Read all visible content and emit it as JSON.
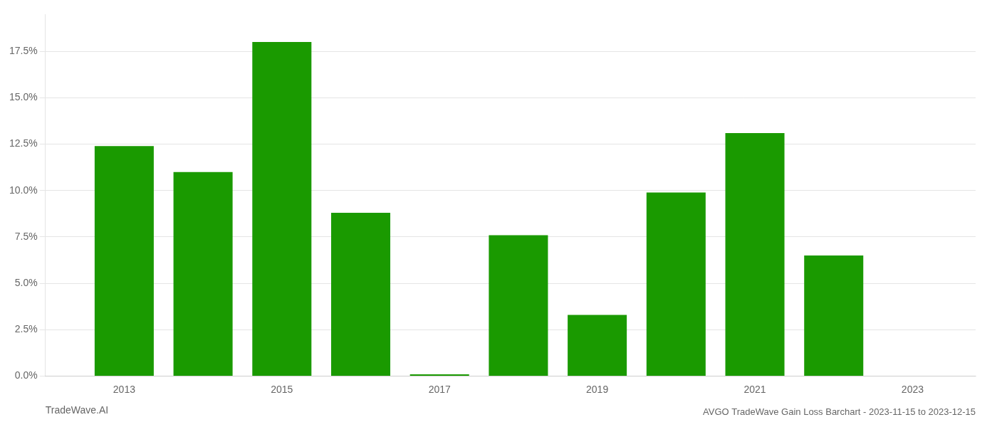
{
  "chart_data": {
    "type": "bar",
    "title": "AVGO TradeWave Gain Loss Barchart - 2023-11-15 to 2023-12-15",
    "annotations": [
      "TradeWave.AI"
    ],
    "x": [
      2013,
      2014,
      2015,
      2016,
      2017,
      2018,
      2019,
      2020,
      2021,
      2022
    ],
    "values": [
      0.124,
      0.11,
      0.18,
      0.088,
      0.001,
      0.076,
      0.033,
      0.099,
      0.131,
      0.065
    ],
    "color": "#1a9a00",
    "xlim": [
      2012.0,
      2023.8
    ],
    "xticks": [
      2013,
      2015,
      2017,
      2019,
      2021,
      2023
    ],
    "ylim": [
      0,
      0.195
    ],
    "yticks": [
      {
        "value": 0.0,
        "label": "0.0%"
      },
      {
        "value": 0.025,
        "label": "2.5%"
      },
      {
        "value": 0.05,
        "label": "5.0%"
      },
      {
        "value": 0.075,
        "label": "7.5%"
      },
      {
        "value": 0.1,
        "label": "10.0%"
      },
      {
        "value": 0.125,
        "label": "12.5%"
      },
      {
        "value": 0.15,
        "label": "15.0%"
      },
      {
        "value": 0.175,
        "label": "17.5%"
      }
    ],
    "grid": "y"
  }
}
